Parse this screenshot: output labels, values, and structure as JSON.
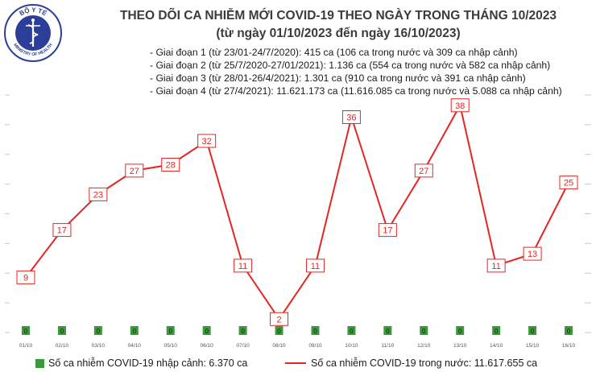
{
  "header": {
    "title": "THEO DÕI CA NHIỄM MỚI COVID-19 THEO NGÀY TRONG THÁNG 10/2023",
    "subtitle": "(từ ngày 01/10/2023 đến ngày 16/10/2023)",
    "notes": [
      "- Giai đoạn 1 (từ 23/01-24/7/2020): 415 ca (106 ca trong nước và 309 ca nhập cảnh)",
      "- Giai đoạn 2 (từ 25/7/2020-27/01/2021): 1.136 ca (554 ca trong nước và 582 ca nhập cảnh)",
      "- Giai đoạn 3 (từ 28/01-26/4/2021): 1.301 ca (910 ca trong nước và 391 ca nhập cảnh)",
      "- Giai đoạn 4 (từ 27/4/2021): 11.621.173 ca (11.616.085 ca trong nước và 5.088 ca nhập cảnh)"
    ]
  },
  "logo": {
    "text": "BỘ Y TẾ",
    "subtext": "MINISTRY OF HEALTH",
    "icon": "caduceus-icon",
    "color": "#2b3f99"
  },
  "chart_data": {
    "type": "line",
    "categories": [
      "01/10",
      "02/10",
      "03/10",
      "04/10",
      "05/10",
      "06/10",
      "07/10",
      "08/10",
      "09/10",
      "10/10",
      "11/10",
      "12/10",
      "13/10",
      "14/10",
      "15/10",
      "16/10"
    ],
    "series": [
      {
        "name": "Số ca nhiễm COVID-19 nhập cảnh: 6.370 ca",
        "type": "bar",
        "color": "#3a9a3a",
        "values": [
          0,
          0,
          0,
          0,
          0,
          0,
          0,
          0,
          0,
          0,
          0,
          0,
          0,
          0,
          0,
          0
        ]
      },
      {
        "name": "Số ca nhiễm COVID-19 trong nước: 11.617.655 ca",
        "type": "line",
        "color": "#e52521",
        "values": [
          9,
          17,
          23,
          27,
          28,
          32,
          11,
          2,
          11,
          36,
          17,
          27,
          38,
          11,
          13,
          25
        ]
      }
    ],
    "ylim": [
      0,
      40
    ],
    "grid": false,
    "legend": "bottom"
  }
}
